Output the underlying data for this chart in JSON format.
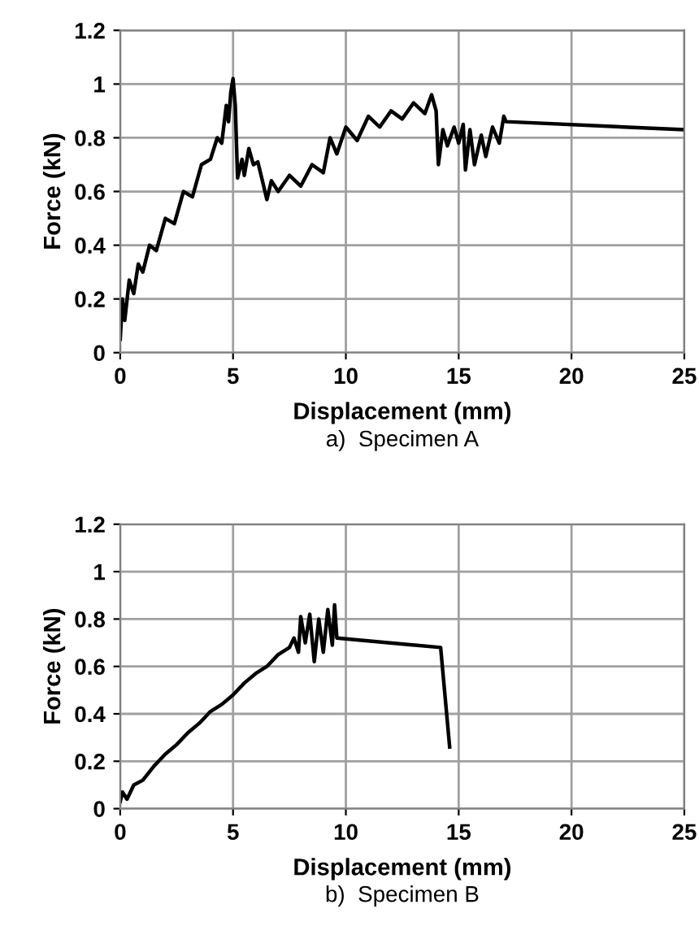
{
  "chart_data": [
    {
      "type": "line",
      "xlabel": "Displacement (mm)",
      "ylabel": "Force (kN)",
      "annotations": [
        "a)  Specimen A"
      ],
      "xlim": [
        0,
        25
      ],
      "ylim": [
        0,
        1.2
      ],
      "xticks": [
        0,
        5,
        10,
        15,
        20,
        25
      ],
      "yticks": [
        0,
        0.2,
        0.4,
        0.6,
        0.8,
        1,
        1.2
      ],
      "grid": true,
      "series": [
        {
          "color": "#000000",
          "x": [
            0,
            0.1,
            0.2,
            0.4,
            0.6,
            0.8,
            1.0,
            1.3,
            1.6,
            2.0,
            2.4,
            2.8,
            3.2,
            3.6,
            4.0,
            4.3,
            4.5,
            4.7,
            4.8,
            4.9,
            5.0,
            5.1,
            5.2,
            5.4,
            5.5,
            5.7,
            5.9,
            6.1,
            6.3,
            6.5,
            6.7,
            7.0,
            7.5,
            8.0,
            8.5,
            9.0,
            9.3,
            9.6,
            10.0,
            10.5,
            11.0,
            11.5,
            12.0,
            12.5,
            13.0,
            13.5,
            13.8,
            14.0,
            14.1,
            14.3,
            14.5,
            14.8,
            15.0,
            15.2,
            15.3,
            15.5,
            15.7,
            16.0,
            16.2,
            16.5,
            16.8,
            17.0,
            17.1,
            25
          ],
          "values": [
            0.05,
            0.2,
            0.12,
            0.27,
            0.22,
            0.33,
            0.3,
            0.4,
            0.38,
            0.5,
            0.48,
            0.6,
            0.58,
            0.7,
            0.72,
            0.8,
            0.78,
            0.92,
            0.86,
            0.97,
            1.02,
            0.92,
            0.65,
            0.72,
            0.66,
            0.76,
            0.7,
            0.71,
            0.64,
            0.57,
            0.64,
            0.6,
            0.66,
            0.62,
            0.7,
            0.67,
            0.8,
            0.74,
            0.84,
            0.79,
            0.88,
            0.84,
            0.9,
            0.87,
            0.93,
            0.89,
            0.96,
            0.9,
            0.7,
            0.83,
            0.77,
            0.84,
            0.78,
            0.85,
            0.68,
            0.83,
            0.7,
            0.81,
            0.73,
            0.84,
            0.78,
            0.88,
            0.86,
            0.83
          ]
        }
      ]
    },
    {
      "type": "line",
      "xlabel": "Displacement (mm)",
      "ylabel": "Force (kN)",
      "annotations": [
        "b)  Specimen B"
      ],
      "xlim": [
        0,
        25
      ],
      "ylim": [
        0,
        1.2
      ],
      "xticks": [
        0,
        5,
        10,
        15,
        20,
        25
      ],
      "yticks": [
        0,
        0.2,
        0.4,
        0.6,
        0.8,
        1,
        1.2
      ],
      "grid": true,
      "series": [
        {
          "color": "#000000",
          "x": [
            0,
            0.1,
            0.3,
            0.6,
            1.0,
            1.5,
            2.0,
            2.5,
            3.0,
            3.5,
            4.0,
            4.5,
            5.0,
            5.5,
            6.0,
            6.5,
            7.0,
            7.5,
            7.7,
            7.9,
            8.0,
            8.2,
            8.4,
            8.6,
            8.8,
            9.0,
            9.2,
            9.4,
            9.5,
            9.6,
            14.2,
            14.6
          ],
          "values": [
            0.03,
            0.07,
            0.04,
            0.1,
            0.12,
            0.18,
            0.23,
            0.27,
            0.32,
            0.36,
            0.41,
            0.44,
            0.48,
            0.53,
            0.57,
            0.6,
            0.65,
            0.68,
            0.72,
            0.66,
            0.81,
            0.7,
            0.82,
            0.62,
            0.8,
            0.66,
            0.84,
            0.69,
            0.86,
            0.72,
            0.68,
            0.26
          ]
        }
      ]
    }
  ]
}
